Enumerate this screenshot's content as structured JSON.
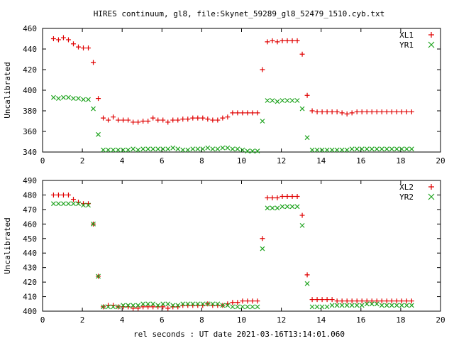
{
  "figure": {
    "title": "HIRES continuum, gl8, file:Skynet_59289_gl8_52479_1510.cyb.txt",
    "xlabel": "rel seconds : UT date 2021-03-16T13:14:01.060"
  },
  "chart_data": [
    {
      "type": "scatter",
      "ylabel": "Uncalibrated",
      "xlim": [
        0,
        20
      ],
      "ylim": [
        340,
        460
      ],
      "xticks": [
        0,
        2,
        4,
        6,
        8,
        10,
        12,
        14,
        16,
        18,
        20
      ],
      "yticks": [
        340,
        360,
        380,
        400,
        420,
        440,
        460
      ],
      "legend_position": "top-right",
      "grid": false,
      "series": [
        {
          "name": "XL1",
          "color": "#e00000",
          "marker": "plus",
          "x": [
            0.55,
            0.8,
            1.05,
            1.3,
            1.55,
            1.8,
            2.05,
            2.3,
            2.55,
            2.8,
            3.05,
            3.3,
            3.55,
            3.8,
            4.05,
            4.3,
            4.55,
            4.8,
            5.05,
            5.3,
            5.55,
            5.8,
            6.05,
            6.3,
            6.55,
            6.8,
            7.05,
            7.3,
            7.55,
            7.8,
            8.05,
            8.3,
            8.55,
            8.8,
            9.05,
            9.3,
            9.55,
            9.8,
            10.05,
            10.3,
            10.55,
            10.8,
            11.05,
            11.3,
            11.55,
            11.8,
            12.05,
            12.3,
            12.55,
            12.8,
            13.05,
            13.3,
            13.55,
            13.8,
            14.05,
            14.3,
            14.55,
            14.8,
            15.05,
            15.3,
            15.55,
            15.8,
            16.05,
            16.3,
            16.55,
            16.8,
            17.05,
            17.3,
            17.55,
            17.8,
            18.05,
            18.3,
            18.55
          ],
          "y": [
            450,
            449,
            451,
            449,
            445,
            442,
            441,
            441,
            427,
            392,
            373,
            371,
            374,
            371,
            371,
            371,
            369,
            369,
            370,
            370,
            373,
            371,
            371,
            369,
            371,
            371,
            372,
            372,
            373,
            373,
            373,
            372,
            371,
            371,
            373,
            374,
            378,
            378,
            378,
            378,
            378,
            378,
            420,
            447,
            448,
            447,
            448,
            448,
            448,
            448,
            435,
            395,
            380,
            379,
            379,
            379,
            379,
            379,
            378,
            377,
            378,
            379,
            379,
            379,
            379,
            379,
            379,
            379,
            379,
            379,
            379,
            379,
            379
          ]
        },
        {
          "name": "YR1",
          "color": "#1fa31f",
          "marker": "x",
          "x": [
            0.55,
            0.8,
            1.05,
            1.3,
            1.55,
            1.8,
            2.05,
            2.3,
            2.55,
            2.8,
            3.05,
            3.3,
            3.55,
            3.8,
            4.05,
            4.3,
            4.55,
            4.8,
            5.05,
            5.3,
            5.55,
            5.8,
            6.05,
            6.3,
            6.55,
            6.8,
            7.05,
            7.3,
            7.55,
            7.8,
            8.05,
            8.3,
            8.55,
            8.8,
            9.05,
            9.3,
            9.55,
            9.8,
            10.05,
            10.3,
            10.55,
            10.8,
            11.05,
            11.3,
            11.55,
            11.8,
            12.05,
            12.3,
            12.55,
            12.8,
            13.05,
            13.3,
            13.55,
            13.8,
            14.05,
            14.3,
            14.55,
            14.8,
            15.05,
            15.3,
            15.55,
            15.8,
            16.05,
            16.3,
            16.55,
            16.8,
            17.05,
            17.3,
            17.55,
            17.8,
            18.05,
            18.3,
            18.55
          ],
          "y": [
            393,
            392,
            393,
            393,
            392,
            392,
            391,
            391,
            382,
            357,
            342,
            342,
            342,
            342,
            342,
            342,
            343,
            342,
            343,
            343,
            343,
            343,
            343,
            343,
            344,
            343,
            342,
            342,
            343,
            343,
            343,
            344,
            343,
            343,
            344,
            344,
            343,
            343,
            342,
            341,
            341,
            341,
            370,
            390,
            390,
            389,
            390,
            390,
            390,
            390,
            382,
            354,
            342,
            342,
            342,
            342,
            342,
            342,
            342,
            342,
            343,
            343,
            343,
            343,
            343,
            343,
            343,
            343,
            343,
            343,
            343,
            343,
            343
          ]
        }
      ]
    },
    {
      "type": "scatter",
      "ylabel": "Uncalibrated",
      "xlim": [
        0,
        20
      ],
      "ylim": [
        400,
        490
      ],
      "xticks": [
        0,
        2,
        4,
        6,
        8,
        10,
        12,
        14,
        16,
        18,
        20
      ],
      "yticks": [
        400,
        410,
        420,
        430,
        440,
        450,
        460,
        470,
        480,
        490
      ],
      "legend_position": "top-right",
      "grid": false,
      "series": [
        {
          "name": "XL2",
          "color": "#e00000",
          "marker": "plus",
          "x": [
            0.55,
            0.8,
            1.05,
            1.3,
            1.55,
            1.8,
            2.05,
            2.3,
            2.55,
            2.8,
            3.05,
            3.3,
            3.55,
            3.8,
            4.05,
            4.3,
            4.55,
            4.8,
            5.05,
            5.3,
            5.55,
            5.8,
            6.05,
            6.3,
            6.55,
            6.8,
            7.05,
            7.3,
            7.55,
            7.8,
            8.05,
            8.3,
            8.55,
            8.8,
            9.05,
            9.3,
            9.55,
            9.8,
            10.05,
            10.3,
            10.55,
            10.8,
            11.05,
            11.3,
            11.55,
            11.8,
            12.05,
            12.3,
            12.55,
            12.8,
            13.05,
            13.3,
            13.55,
            13.8,
            14.05,
            14.3,
            14.55,
            14.8,
            15.05,
            15.3,
            15.55,
            15.8,
            16.05,
            16.3,
            16.55,
            16.8,
            17.05,
            17.3,
            17.55,
            17.8,
            18.05,
            18.3,
            18.55
          ],
          "y": [
            480,
            480,
            480,
            480,
            477,
            475,
            474,
            474,
            460,
            424,
            403,
            404,
            404,
            403,
            403,
            403,
            402,
            402,
            403,
            403,
            403,
            403,
            403,
            402,
            403,
            403,
            404,
            404,
            404,
            404,
            404,
            405,
            404,
            404,
            404,
            405,
            406,
            406,
            407,
            407,
            407,
            407,
            450,
            478,
            478,
            478,
            479,
            479,
            479,
            479,
            466,
            425,
            408,
            408,
            408,
            408,
            408,
            407,
            407,
            407,
            407,
            407,
            407,
            407,
            407,
            407,
            407,
            407,
            407,
            407,
            407,
            407,
            407
          ]
        },
        {
          "name": "YR2",
          "color": "#1fa31f",
          "marker": "x",
          "x": [
            0.55,
            0.8,
            1.05,
            1.3,
            1.55,
            1.8,
            2.05,
            2.3,
            2.55,
            2.8,
            3.05,
            3.3,
            3.55,
            3.8,
            4.05,
            4.3,
            4.55,
            4.8,
            5.05,
            5.3,
            5.55,
            5.8,
            6.05,
            6.3,
            6.55,
            6.8,
            7.05,
            7.3,
            7.55,
            7.8,
            8.05,
            8.3,
            8.55,
            8.8,
            9.05,
            9.3,
            9.55,
            9.8,
            10.05,
            10.3,
            10.55,
            10.8,
            11.05,
            11.3,
            11.55,
            11.8,
            12.05,
            12.3,
            12.55,
            12.8,
            13.05,
            13.3,
            13.55,
            13.8,
            14.05,
            14.3,
            14.55,
            14.8,
            15.05,
            15.3,
            15.55,
            15.8,
            16.05,
            16.3,
            16.55,
            16.8,
            17.05,
            17.3,
            17.55,
            17.8,
            18.05,
            18.3,
            18.55
          ],
          "y": [
            474,
            474,
            474,
            474,
            474,
            474,
            473,
            473,
            460,
            424,
            403,
            403,
            403,
            403,
            404,
            404,
            404,
            404,
            405,
            405,
            405,
            404,
            405,
            405,
            404,
            404,
            405,
            405,
            405,
            405,
            405,
            405,
            405,
            405,
            404,
            404,
            403,
            403,
            403,
            403,
            403,
            403,
            443,
            471,
            471,
            471,
            472,
            472,
            472,
            472,
            459,
            419,
            403,
            403,
            403,
            403,
            404,
            404,
            404,
            404,
            404,
            404,
            404,
            405,
            405,
            405,
            404,
            404,
            404,
            404,
            404,
            404,
            404
          ]
        }
      ]
    }
  ]
}
